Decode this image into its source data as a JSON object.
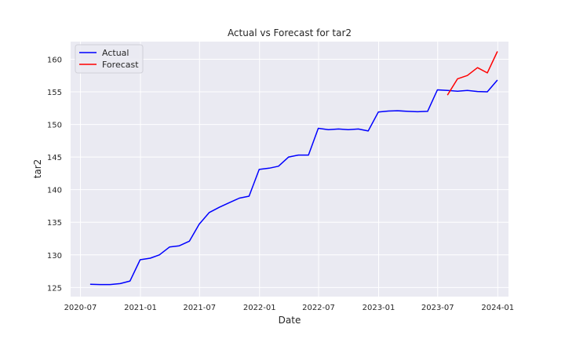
{
  "chart_data": {
    "type": "line",
    "title": "Actual vs Forecast for tar2",
    "xlabel": "Date",
    "ylabel": "tar2",
    "grid": true,
    "legend_position": "top-left",
    "background": "#EAEAF2",
    "xlim": [
      "2020-06-01",
      "2024-02-03"
    ],
    "ylim": [
      123.6,
      162.7
    ],
    "x_ticks": [
      "2020-07",
      "2021-01",
      "2021-07",
      "2022-01",
      "2022-07",
      "2023-01",
      "2023-07",
      "2024-01"
    ],
    "y_ticks": [
      125,
      130,
      135,
      140,
      145,
      150,
      155,
      160
    ],
    "series": [
      {
        "name": "Actual",
        "color": "#0000FF",
        "x": [
          "2020-07-31",
          "2020-08-31",
          "2020-09-30",
          "2020-10-31",
          "2020-11-30",
          "2020-12-31",
          "2021-01-31",
          "2021-02-28",
          "2021-03-31",
          "2021-04-30",
          "2021-05-31",
          "2021-06-30",
          "2021-07-31",
          "2021-08-31",
          "2021-09-30",
          "2021-10-31",
          "2021-11-30",
          "2021-12-31",
          "2022-01-31",
          "2022-02-28",
          "2022-03-31",
          "2022-04-30",
          "2022-05-31",
          "2022-06-30",
          "2022-07-31",
          "2022-08-31",
          "2022-09-30",
          "2022-10-31",
          "2022-11-30",
          "2022-12-31",
          "2023-01-31",
          "2023-02-28",
          "2023-03-31",
          "2023-04-30",
          "2023-05-31",
          "2023-06-30",
          "2023-07-31",
          "2023-08-31",
          "2023-09-30",
          "2023-10-31",
          "2023-11-30",
          "2023-12-31"
        ],
        "values": [
          125.5,
          125.45,
          125.45,
          125.6,
          126.0,
          129.25,
          129.5,
          130.0,
          131.2,
          131.4,
          132.1,
          134.7,
          136.5,
          137.3,
          138.0,
          138.7,
          139.0,
          143.1,
          143.3,
          143.6,
          145.0,
          145.3,
          145.3,
          149.4,
          149.2,
          149.3,
          149.2,
          149.3,
          149.0,
          151.9,
          152.05,
          152.1,
          152.0,
          151.95,
          152.0,
          155.3,
          155.2,
          155.1,
          155.2,
          155.05,
          155.0,
          156.8
        ]
      },
      {
        "name": "Forecast",
        "color": "#FF0000",
        "x": [
          "2023-07-31",
          "2023-08-31",
          "2023-09-30",
          "2023-10-31",
          "2023-11-30",
          "2023-12-31"
        ],
        "values": [
          154.5,
          157.0,
          157.5,
          158.7,
          157.9,
          161.2
        ]
      }
    ]
  }
}
